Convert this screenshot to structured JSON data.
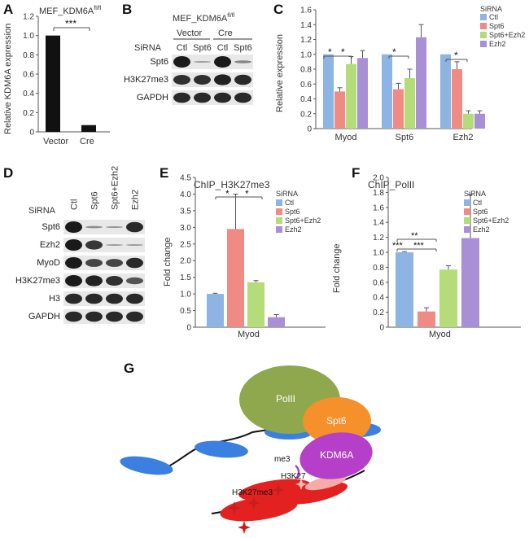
{
  "colors": {
    "ctl": "#8db4e2",
    "spt6": "#f08a84",
    "spt6_ezh2": "#b4dc78",
    "ezh2": "#a98fd6",
    "black_bar": "#111111",
    "band": "#1a1a1a",
    "blot_bg": "#e8e8e8",
    "poli": "#8fa84e",
    "spt6_oval": "#f5902a",
    "kdm6a": "#b53fc9",
    "nucleosome_blue": "#3b7fe0",
    "nucleosome_red": "#e32121",
    "star": "#c81e1e"
  },
  "panelA": {
    "label": "A",
    "title": "MEF_KDM6A",
    "title_sup": "fl/fl",
    "sig": "***",
    "chart_data": {
      "type": "bar",
      "categories": [
        "Vector",
        "Cre"
      ],
      "values": [
        1.0,
        0.07
      ],
      "ylabel": "Relative KDM6A expression",
      "ylim": [
        0,
        1.2
      ],
      "yticks": [
        "0",
        "0.2",
        "0.4",
        "0.6",
        "0.8",
        "1.0",
        "1.2"
      ]
    }
  },
  "panelB": {
    "label": "B",
    "title": "MEF_KDM6A",
    "title_sup": "fl/fl",
    "groups": [
      "Vector",
      "Cre"
    ],
    "sirna_label": "SiRNA",
    "lanes": [
      "Ctl",
      "Spt6",
      "Ctl",
      "Spt6"
    ],
    "rows": [
      {
        "name": "Spt6",
        "bands": [
          1,
          0.1,
          1,
          0.25
        ]
      },
      {
        "name": "H3K27me3",
        "bands": [
          0.85,
          0.85,
          0.95,
          0.9
        ]
      },
      {
        "name": "GAPDH",
        "bands": [
          0.9,
          0.9,
          0.9,
          0.9
        ]
      }
    ]
  },
  "panelC": {
    "label": "C",
    "legend_title": "SiRNA",
    "sigs": [
      "*",
      "*",
      "*",
      "*"
    ],
    "chart_data": {
      "type": "bar",
      "categories": [
        "Myod",
        "Spt6",
        "Ezh2"
      ],
      "ylabel": "Relative expression",
      "ylim": [
        0,
        1.6
      ],
      "yticks": [
        "0",
        "0.2",
        "0.4",
        "0.6",
        "0.8",
        "1.0",
        "1.2",
        "1.4",
        "1.6"
      ],
      "series": [
        {
          "name": "Ctl",
          "values": [
            1.0,
            1.0,
            1.0
          ],
          "errors": [
            0.0,
            0.0,
            0.0
          ]
        },
        {
          "name": "Spt6",
          "values": [
            0.5,
            0.53,
            0.8
          ],
          "errors": [
            0.05,
            0.08,
            0.1
          ]
        },
        {
          "name": "Spt6+Ezh2",
          "values": [
            0.87,
            0.68,
            0.2
          ],
          "errors": [
            0.1,
            0.12,
            0.04
          ]
        },
        {
          "name": "Ezh2",
          "values": [
            0.95,
            1.23,
            0.2
          ],
          "errors": [
            0.1,
            0.17,
            0.04
          ]
        }
      ]
    }
  },
  "panelD": {
    "label": "D",
    "sirna_label": "SiRNA",
    "lanes": [
      "Ctl",
      "Spt6",
      "Spt6+Ezh2",
      "Ezh2"
    ],
    "rows": [
      {
        "name": "Spt6",
        "bands": [
          1,
          0.2,
          0.15,
          0.9
        ]
      },
      {
        "name": "Ezh2",
        "bands": [
          1,
          0.8,
          0.1,
          0.1
        ]
      },
      {
        "name": "MyoD",
        "bands": [
          1,
          0.7,
          0.7,
          0.9
        ]
      },
      {
        "name": "H3K27me3",
        "bands": [
          1,
          0.95,
          0.85,
          0.6
        ]
      },
      {
        "name": "H3",
        "bands": [
          0.9,
          0.9,
          0.9,
          0.9
        ]
      },
      {
        "name": "GAPDH",
        "bands": [
          0.9,
          0.9,
          0.9,
          0.9
        ]
      }
    ]
  },
  "panelE": {
    "label": "E",
    "title": "ChIP_H3K27me3",
    "legend_title": "SiRNA",
    "sigs": [
      "*",
      "*"
    ],
    "chart_data": {
      "type": "bar",
      "categories": [
        "Myod"
      ],
      "ylabel": "Fold change",
      "ylim": [
        0,
        4.5
      ],
      "yticks": [
        "0",
        "0.5",
        "1.0",
        "1.5",
        "2.0",
        "2.5",
        "3.0",
        "3.5",
        "4.0",
        "4.5"
      ],
      "series": [
        {
          "name": "Ctl",
          "values": [
            1.0
          ],
          "errors": [
            0.02
          ]
        },
        {
          "name": "Spt6",
          "values": [
            2.95
          ],
          "errors": [
            1.05
          ]
        },
        {
          "name": "Spt6+Ezh2",
          "values": [
            1.35
          ],
          "errors": [
            0.05
          ]
        },
        {
          "name": "Ezh2",
          "values": [
            0.3
          ],
          "errors": [
            0.08
          ]
        }
      ]
    }
  },
  "panelF": {
    "label": "F",
    "title": "ChIP_PolII",
    "legend_title": "SiRNA",
    "sigs": [
      "**",
      "***",
      "***"
    ],
    "chart_data": {
      "type": "bar",
      "categories": [
        "Myod"
      ],
      "ylabel": "Fold change",
      "ylim": [
        0,
        2.0
      ],
      "yticks": [
        "0",
        "0.2",
        "0.4",
        "0.6",
        "0.8",
        "1.0",
        "1.2",
        "1.4",
        "1.6",
        "1.8",
        "2.0"
      ],
      "series": [
        {
          "name": "Ctl",
          "values": [
            1.0
          ],
          "errors": [
            0.01
          ]
        },
        {
          "name": "Spt6",
          "values": [
            0.21
          ],
          "errors": [
            0.05
          ]
        },
        {
          "name": "Spt6+Ezh2",
          "values": [
            0.77
          ],
          "errors": [
            0.05
          ]
        },
        {
          "name": "Ezh2",
          "values": [
            1.19
          ],
          "errors": [
            0.58
          ]
        }
      ]
    }
  },
  "panelG": {
    "label": "G",
    "poli": "PolII",
    "spt6": "Spt6",
    "kdm6a": "KDM6A",
    "me3": "me3",
    "h3k27": "H3K27",
    "h3k27me3": "H3K27me3"
  }
}
